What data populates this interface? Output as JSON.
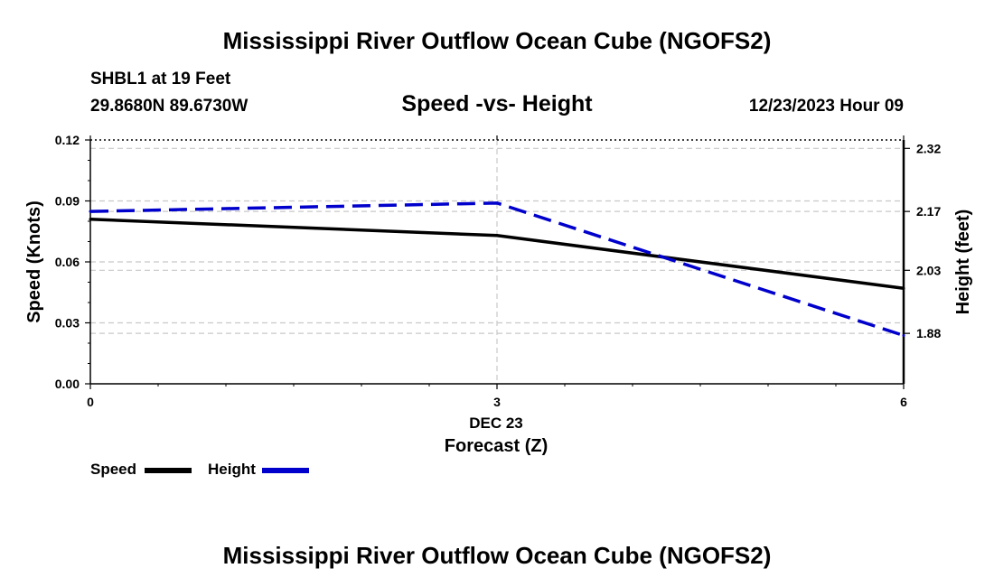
{
  "header": {
    "title": "Mississippi River Outflow Ocean Cube (NGOFS2)",
    "station": "SHBL1 at 19 Feet",
    "coordinates": "29.8680N  89.6730W",
    "subtitle": "Speed -vs- Height",
    "datetime": "12/23/2023 Hour 09"
  },
  "footer": {
    "title": "Mississippi River Outflow Ocean Cube (NGOFS2)"
  },
  "chart_data": {
    "type": "line",
    "title": "Speed -vs- Height",
    "xlabel": "Forecast (Z)",
    "x_date_label": "DEC 23",
    "x": [
      0,
      3,
      6
    ],
    "x_ticks": [
      "0",
      "3",
      "6"
    ],
    "xlim": [
      0,
      6
    ],
    "ylabel": "Speed (Knots)",
    "ylim": [
      0,
      0.12
    ],
    "y_ticks": [
      "0.00",
      "0.03",
      "0.06",
      "0.09",
      "0.12"
    ],
    "y2label": "Height (feet)",
    "y2lim": [
      1.76,
      2.34
    ],
    "y2_ticks": [
      "1.88",
      "2.03",
      "2.17",
      "2.32"
    ],
    "series": [
      {
        "name": "Speed",
        "axis": "left",
        "style": "solid",
        "color": "#000000",
        "values": [
          0.081,
          0.073,
          0.047
        ]
      },
      {
        "name": "Height",
        "axis": "right",
        "style": "dashed",
        "color": "#0000cc",
        "values": [
          2.17,
          2.19,
          1.875
        ]
      }
    ],
    "legend": [
      "Speed",
      "Height"
    ],
    "legend_position": "bottom-left",
    "grid": true
  }
}
